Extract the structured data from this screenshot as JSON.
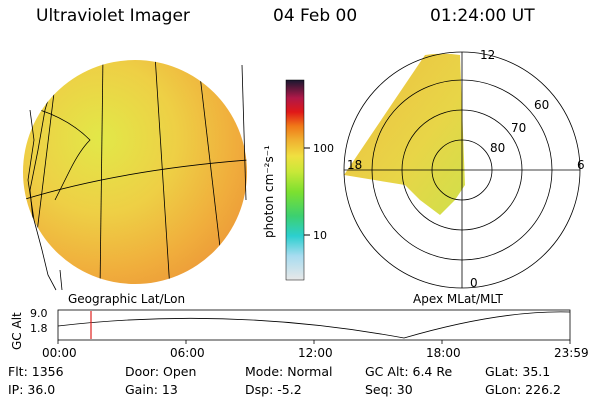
{
  "header": {
    "instrument": "Ultraviolet Imager",
    "date": "04 Feb 00",
    "time": "01:24:00 UT"
  },
  "colorbar": {
    "unit_label": "photon cm⁻²s⁻¹",
    "ticks": [
      "100",
      "10"
    ]
  },
  "panels": {
    "left_label": "Geographic Lat/Lon",
    "right_label": "Apex MLat/MLT"
  },
  "polar": {
    "clock_labels": [
      "12",
      "6",
      "0",
      "18"
    ],
    "lat_labels": [
      "60",
      "70",
      "80"
    ]
  },
  "altitude": {
    "axis_label": "GC Alt",
    "y_ticks": [
      "9.0",
      "1.8"
    ],
    "x_ticks": [
      "00:00",
      "06:00",
      "12:00",
      "18:00",
      "23:59"
    ]
  },
  "info": {
    "flt": "Flt: 1356",
    "ip": "IP: 36.0",
    "door": "Door: Open",
    "gain": "Gain: 13",
    "mode": "Mode: Normal",
    "dsp": "Dsp:    -5.2",
    "gcalt": "GC Alt: 6.4 Re",
    "seq": "Seq: 30",
    "glat": "GLat:  35.1",
    "glon": "GLon: 226.2"
  },
  "colors": {
    "image_yellow": "#e6e04a",
    "image_orange": "#f0a23a",
    "marker": "#e0201e"
  }
}
